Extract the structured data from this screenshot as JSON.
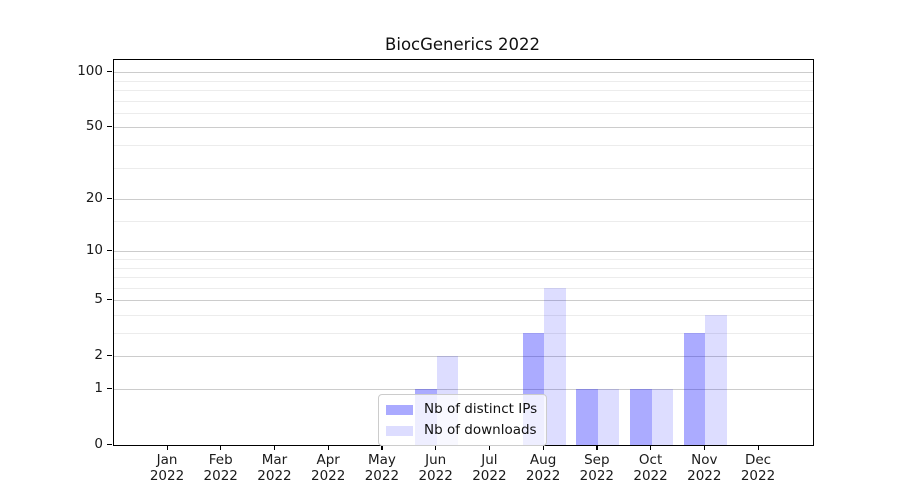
{
  "chart_data": {
    "type": "bar",
    "title": "BiocGenerics 2022",
    "categories": [
      "Jan 2022",
      "Feb 2022",
      "Mar 2022",
      "Apr 2022",
      "May 2022",
      "Jun 2022",
      "Jul 2022",
      "Aug 2022",
      "Sep 2022",
      "Oct 2022",
      "Nov 2022",
      "Dec 2022"
    ],
    "series": [
      {
        "name": "Nb of distinct IPs",
        "color": "rgba(0,0,255,0.33)",
        "swatch_color": "#aaaaff",
        "values": [
          0,
          0,
          0,
          0,
          0,
          1,
          0,
          3,
          1,
          1,
          3,
          0
        ]
      },
      {
        "name": "Nb of downloads",
        "color": "rgba(0,0,255,0.135)",
        "swatch_color": "#ddddff",
        "values": [
          0,
          0,
          0,
          0,
          0,
          2,
          0,
          6,
          1,
          1,
          4,
          0
        ]
      }
    ],
    "xlabel": "",
    "ylabel": "",
    "yscale": "log1p",
    "ylim": [
      0,
      117
    ],
    "y_major_ticks": [
      0,
      1,
      2,
      5,
      10,
      20,
      50,
      100
    ],
    "y_minor_gridlines": [
      3,
      4,
      6,
      7,
      8,
      9,
      15,
      30,
      40,
      60,
      70,
      80,
      90
    ],
    "grid": true,
    "legend_position": "lower center-right inside plot"
  },
  "colors": {
    "major_grid": "#cccccc",
    "minor_grid": "#ececec",
    "axis": "#000000",
    "background": "#ffffff"
  }
}
